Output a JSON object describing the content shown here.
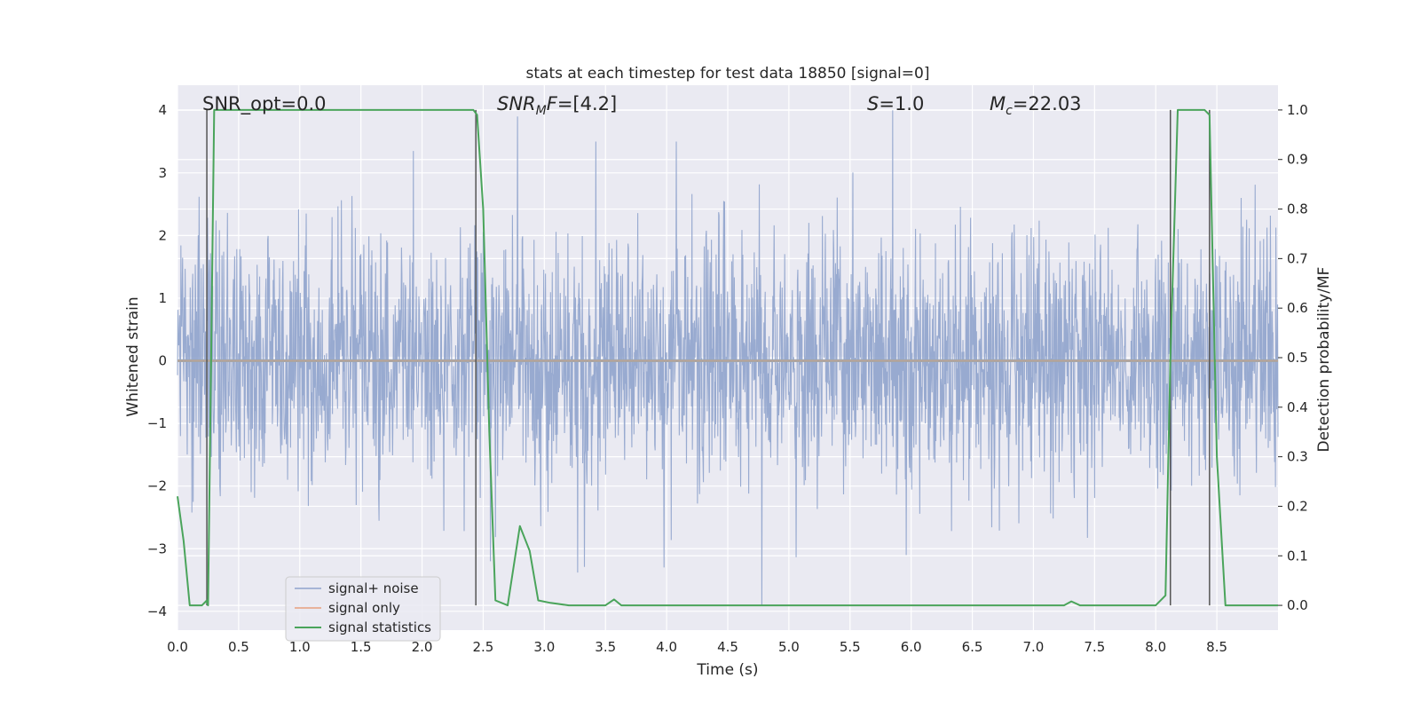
{
  "chart_data": {
    "type": "line",
    "title": "stats at each timestep for test data 18850 [signal=0]",
    "xlabel": "Time (s)",
    "ylabel": "Whitened strain",
    "y2label": "Detection probability/MF",
    "xlim": [
      0.0,
      9.0
    ],
    "ylim": [
      -4.3,
      4.4
    ],
    "y2lim": [
      -0.05,
      1.05
    ],
    "xticks": [
      "0.0",
      "0.5",
      "1.0",
      "1.5",
      "2.0",
      "2.5",
      "3.0",
      "3.5",
      "4.0",
      "4.5",
      "5.0",
      "5.5",
      "6.0",
      "6.5",
      "7.0",
      "7.5",
      "8.0",
      "8.5"
    ],
    "yticks": [
      "−4",
      "−3",
      "−2",
      "−1",
      "0",
      "1",
      "2",
      "3",
      "4"
    ],
    "y2ticks": [
      "0.0",
      "0.1",
      "0.2",
      "0.3",
      "0.4",
      "0.5",
      "0.6",
      "0.7",
      "0.8",
      "0.9",
      "1.0"
    ],
    "grid": true,
    "legend_position": "lower-left",
    "annotations": {
      "snr_opt": "SNR_opt=0.0",
      "snr_mf_base": "SNR",
      "snr_mf_sub": "M",
      "snr_mf_rest": "F=[4.2]",
      "s_italic": "S",
      "s_rest": "=1.0",
      "mc_base": "M",
      "mc_sub": "c",
      "mc_rest": "=22.03"
    },
    "vertical_markers_x": [
      0.24,
      2.44,
      8.12,
      8.44
    ],
    "series": [
      {
        "name": "signal+ noise",
        "color": "#8fa3cc",
        "axis": "left",
        "description_of_samples": "Gaussian noise, std ~1, ±2.5 typical with spikes to ±4",
        "envelope_peaks": [
          {
            "x": 2.78,
            "y": 3.9
          },
          {
            "x": 5.85,
            "y": 4.0
          },
          {
            "x": 1.93,
            "y": 3.35
          },
          {
            "x": 3.42,
            "y": 3.5
          },
          {
            "x": 4.08,
            "y": 3.5
          },
          {
            "x": 3.98,
            "y": -3.3
          },
          {
            "x": 4.78,
            "y": -3.9
          },
          {
            "x": 2.56,
            "y": -3.2
          }
        ]
      },
      {
        "name": "signal only",
        "color": "#e8a07e",
        "axis": "left",
        "values": [
          0,
          0
        ]
      },
      {
        "name": "signal statistics",
        "color": "#4aa45b",
        "axis": "right",
        "x": [
          0.0,
          0.05,
          0.1,
          0.2,
          0.24,
          0.25,
          0.3,
          0.35,
          0.5,
          1.0,
          1.5,
          2.0,
          2.3,
          2.42,
          2.45,
          2.5,
          2.55,
          2.6,
          2.7,
          2.8,
          2.88,
          2.95,
          3.05,
          3.2,
          3.5,
          3.57,
          3.63,
          4.0,
          5.0,
          6.0,
          7.0,
          7.25,
          7.31,
          7.38,
          7.6,
          8.0,
          8.08,
          8.12,
          8.18,
          8.3,
          8.4,
          8.44,
          8.5,
          8.57,
          9.0
        ],
        "y": [
          0.22,
          0.13,
          0.0,
          0.0,
          0.01,
          0.0,
          1.0,
          1.0,
          1.0,
          1.0,
          1.0,
          1.0,
          1.0,
          1.0,
          0.99,
          0.8,
          0.35,
          0.01,
          0.0,
          0.16,
          0.11,
          0.01,
          0.005,
          0.0,
          0.0,
          0.012,
          0.0,
          0.0,
          0.0,
          0.0,
          0.0,
          0.0,
          0.008,
          0.0,
          0.0,
          0.0,
          0.02,
          0.5,
          1.0,
          1.0,
          1.0,
          0.99,
          0.3,
          0.0,
          0.0
        ]
      }
    ]
  }
}
